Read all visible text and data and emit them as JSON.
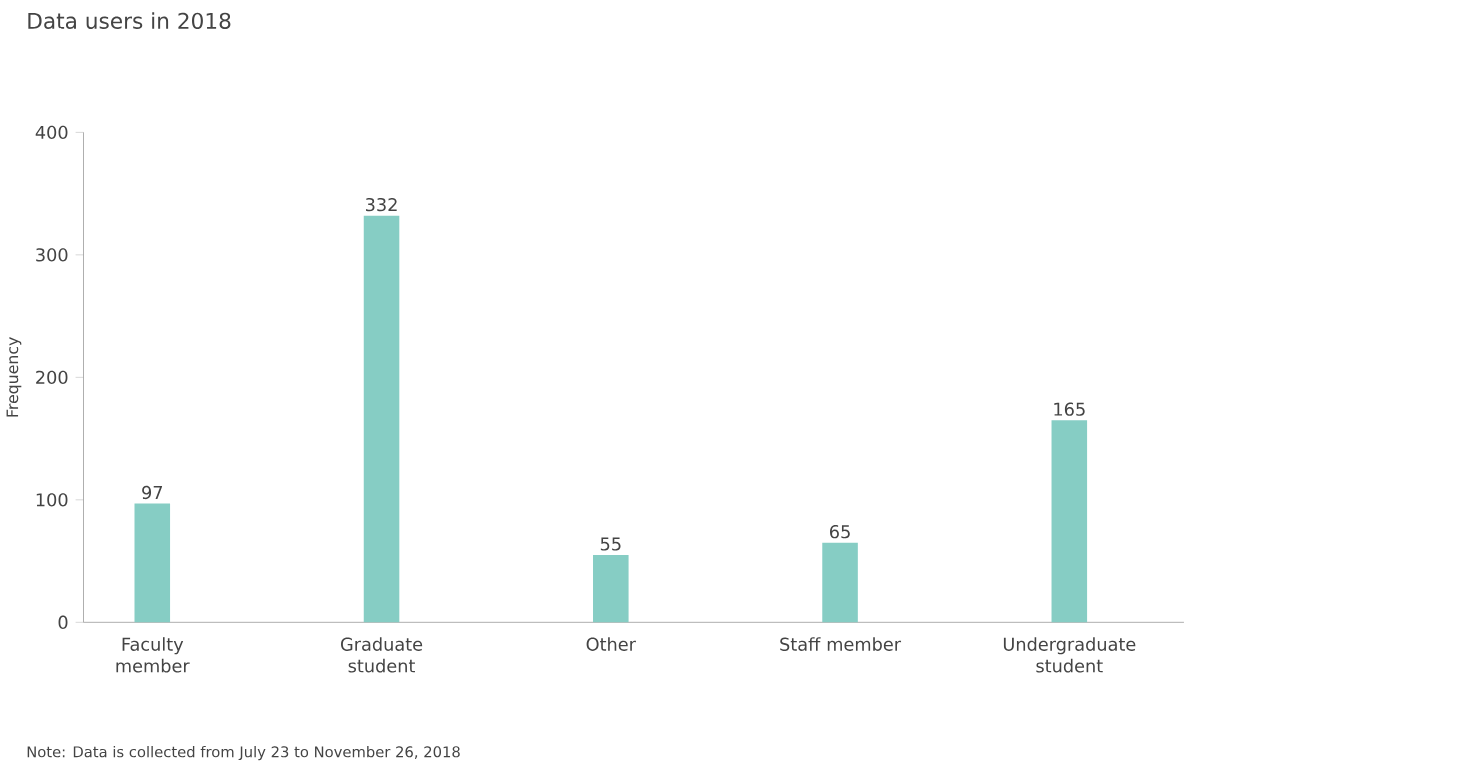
{
  "chart_data": {
    "type": "bar",
    "title": "Data users in 2018",
    "ylabel": "Frequency",
    "categories": [
      "Faculty member",
      "Graduate student",
      "Other",
      "Staff member",
      "Undergraduate student"
    ],
    "values": [
      97,
      332,
      55,
      65,
      165
    ],
    "color": "#86cdc4",
    "ylim": [
      0,
      400
    ],
    "yticks": [
      0,
      100,
      200,
      300,
      400
    ],
    "data_labels": true,
    "annotations": [
      "Note: Data is collected from July 23 to November 26, 2018"
    ]
  }
}
